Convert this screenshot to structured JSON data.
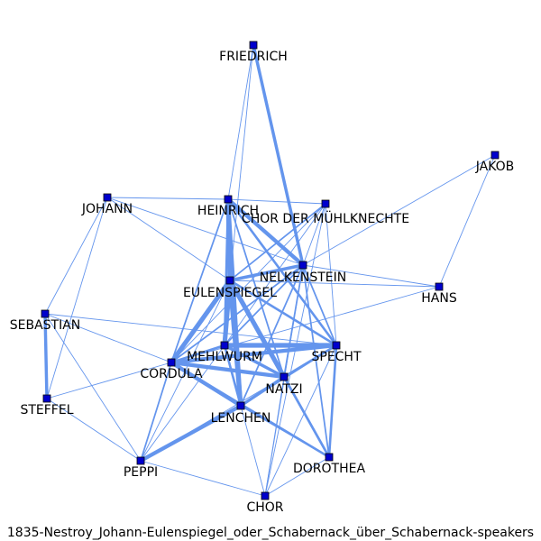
{
  "caption": "1835-Nestroy_Johann-Eulenspiegel_oder_Schabernack_über_Schabernack-speakers",
  "colors": {
    "edge": "#6495ed",
    "node_fill": "#0000cd",
    "node_stroke": "#000000",
    "label": "#000000"
  },
  "nodes": [
    {
      "id": "FRIEDRICH",
      "label": "FRIEDRICH"
    },
    {
      "id": "JAKOB",
      "label": "JAKOB"
    },
    {
      "id": "JOHANN",
      "label": "JOHANN"
    },
    {
      "id": "HEINRICH",
      "label": "HEINRICH"
    },
    {
      "id": "CHOR_MUEHL",
      "label": "CHOR DER MÜHLKNECHTE"
    },
    {
      "id": "NELKENSTEIN",
      "label": "NELKENSTEIN"
    },
    {
      "id": "HANS",
      "label": "HANS"
    },
    {
      "id": "EULENSPIEGEL",
      "label": "EULENSPIEGEL"
    },
    {
      "id": "SEBASTIAN",
      "label": "SEBASTIAN"
    },
    {
      "id": "MEHLWURM",
      "label": "MEHLWURM"
    },
    {
      "id": "SPECHT",
      "label": "SPECHT"
    },
    {
      "id": "CORDULA",
      "label": "CORDULA"
    },
    {
      "id": "NATZI",
      "label": "NATZI"
    },
    {
      "id": "STEFFEL",
      "label": "STEFFEL"
    },
    {
      "id": "LENCHEN",
      "label": "LENCHEN"
    },
    {
      "id": "PEPPI",
      "label": "PEPPI"
    },
    {
      "id": "DOROTHEA",
      "label": "DOROTHEA"
    },
    {
      "id": "CHOR",
      "label": "CHOR"
    }
  ],
  "edges": [
    {
      "source": "FRIEDRICH",
      "target": "HEINRICH",
      "weight": 1
    },
    {
      "source": "FRIEDRICH",
      "target": "EULENSPIEGEL",
      "weight": 1
    },
    {
      "source": "FRIEDRICH",
      "target": "NELKENSTEIN",
      "weight": 4
    },
    {
      "source": "JAKOB",
      "target": "NELKENSTEIN",
      "weight": 1
    },
    {
      "source": "JAKOB",
      "target": "HANS",
      "weight": 1
    },
    {
      "source": "JOHANN",
      "target": "HEINRICH",
      "weight": 1
    },
    {
      "source": "JOHANN",
      "target": "NELKENSTEIN",
      "weight": 1
    },
    {
      "source": "JOHANN",
      "target": "SEBASTIAN",
      "weight": 1
    },
    {
      "source": "JOHANN",
      "target": "STEFFEL",
      "weight": 1
    },
    {
      "source": "JOHANN",
      "target": "EULENSPIEGEL",
      "weight": 1
    },
    {
      "source": "HEINRICH",
      "target": "CHOR_MUEHL",
      "weight": 1
    },
    {
      "source": "HEINRICH",
      "target": "NELKENSTEIN",
      "weight": 5
    },
    {
      "source": "HEINRICH",
      "target": "EULENSPIEGEL",
      "weight": 6
    },
    {
      "source": "HEINRICH",
      "target": "MEHLWURM",
      "weight": 3
    },
    {
      "source": "HEINRICH",
      "target": "SPECHT",
      "weight": 3
    },
    {
      "source": "HEINRICH",
      "target": "NATZI",
      "weight": 2
    },
    {
      "source": "HEINRICH",
      "target": "LENCHEN",
      "weight": 5
    },
    {
      "source": "HEINRICH",
      "target": "CORDULA",
      "weight": 2
    },
    {
      "source": "CHOR_MUEHL",
      "target": "NELKENSTEIN",
      "weight": 1
    },
    {
      "source": "CHOR_MUEHL",
      "target": "EULENSPIEGEL",
      "weight": 2
    },
    {
      "source": "CHOR_MUEHL",
      "target": "SPECHT",
      "weight": 1
    },
    {
      "source": "CHOR_MUEHL",
      "target": "CORDULA",
      "weight": 1
    },
    {
      "source": "CHOR_MUEHL",
      "target": "CHOR",
      "weight": 1
    },
    {
      "source": "CHOR_MUEHL",
      "target": "MEHLWURM",
      "weight": 1
    },
    {
      "source": "NELKENSTEIN",
      "target": "EULENSPIEGEL",
      "weight": 4
    },
    {
      "source": "NELKENSTEIN",
      "target": "HANS",
      "weight": 1
    },
    {
      "source": "NELKENSTEIN",
      "target": "SPECHT",
      "weight": 2
    },
    {
      "source": "NELKENSTEIN",
      "target": "MEHLWURM",
      "weight": 2
    },
    {
      "source": "NELKENSTEIN",
      "target": "NATZI",
      "weight": 2
    },
    {
      "source": "NELKENSTEIN",
      "target": "CORDULA",
      "weight": 2
    },
    {
      "source": "NELKENSTEIN",
      "target": "LENCHEN",
      "weight": 2
    },
    {
      "source": "NELKENSTEIN",
      "target": "DOROTHEA",
      "weight": 2
    },
    {
      "source": "NELKENSTEIN",
      "target": "CHOR",
      "weight": 1
    },
    {
      "source": "HANS",
      "target": "EULENSPIEGEL",
      "weight": 1
    },
    {
      "source": "HANS",
      "target": "CORDULA",
      "weight": 1
    },
    {
      "source": "EULENSPIEGEL",
      "target": "MEHLWURM",
      "weight": 6
    },
    {
      "source": "EULENSPIEGEL",
      "target": "SPECHT",
      "weight": 3
    },
    {
      "source": "EULENSPIEGEL",
      "target": "CORDULA",
      "weight": 6
    },
    {
      "source": "EULENSPIEGEL",
      "target": "NATZI",
      "weight": 6
    },
    {
      "source": "EULENSPIEGEL",
      "target": "LENCHEN",
      "weight": 6
    },
    {
      "source": "EULENSPIEGEL",
      "target": "DOROTHEA",
      "weight": 3
    },
    {
      "source": "EULENSPIEGEL",
      "target": "PEPPI",
      "weight": 1
    },
    {
      "source": "SEBASTIAN",
      "target": "STEFFEL",
      "weight": 4
    },
    {
      "source": "SEBASTIAN",
      "target": "CORDULA",
      "weight": 1
    },
    {
      "source": "SEBASTIAN",
      "target": "SPECHT",
      "weight": 1
    },
    {
      "source": "SEBASTIAN",
      "target": "PEPPI",
      "weight": 1
    },
    {
      "source": "MEHLWURM",
      "target": "SPECHT",
      "weight": 6
    },
    {
      "source": "MEHLWURM",
      "target": "NATZI",
      "weight": 4
    },
    {
      "source": "MEHLWURM",
      "target": "CORDULA",
      "weight": 3
    },
    {
      "source": "MEHLWURM",
      "target": "LENCHEN",
      "weight": 3
    },
    {
      "source": "MEHLWURM",
      "target": "PEPPI",
      "weight": 1
    },
    {
      "source": "SPECHT",
      "target": "CORDULA",
      "weight": 5
    },
    {
      "source": "SPECHT",
      "target": "NATZI",
      "weight": 3
    },
    {
      "source": "SPECHT",
      "target": "LENCHEN",
      "weight": 2
    },
    {
      "source": "SPECHT",
      "target": "DOROTHEA",
      "weight": 3
    },
    {
      "source": "SPECHT",
      "target": "CHOR",
      "weight": 1
    },
    {
      "source": "CORDULA",
      "target": "NATZI",
      "weight": 5
    },
    {
      "source": "CORDULA",
      "target": "LENCHEN",
      "weight": 5
    },
    {
      "source": "CORDULA",
      "target": "PEPPI",
      "weight": 2
    },
    {
      "source": "CORDULA",
      "target": "STEFFEL",
      "weight": 1
    },
    {
      "source": "CORDULA",
      "target": "DOROTHEA",
      "weight": 3
    },
    {
      "source": "NATZI",
      "target": "LENCHEN",
      "weight": 4
    },
    {
      "source": "NATZI",
      "target": "DOROTHEA",
      "weight": 3
    },
    {
      "source": "NATZI",
      "target": "CHOR",
      "weight": 1
    },
    {
      "source": "NATZI",
      "target": "PEPPI",
      "weight": 1
    },
    {
      "source": "LENCHEN",
      "target": "PEPPI",
      "weight": 5
    },
    {
      "source": "LENCHEN",
      "target": "DOROTHEA",
      "weight": 2
    },
    {
      "source": "LENCHEN",
      "target": "CHOR",
      "weight": 1
    },
    {
      "source": "PEPPI",
      "target": "CHOR",
      "weight": 1
    },
    {
      "source": "PEPPI",
      "target": "STEFFEL",
      "weight": 1
    },
    {
      "source": "DOROTHEA",
      "target": "CHOR",
      "weight": 1
    }
  ]
}
